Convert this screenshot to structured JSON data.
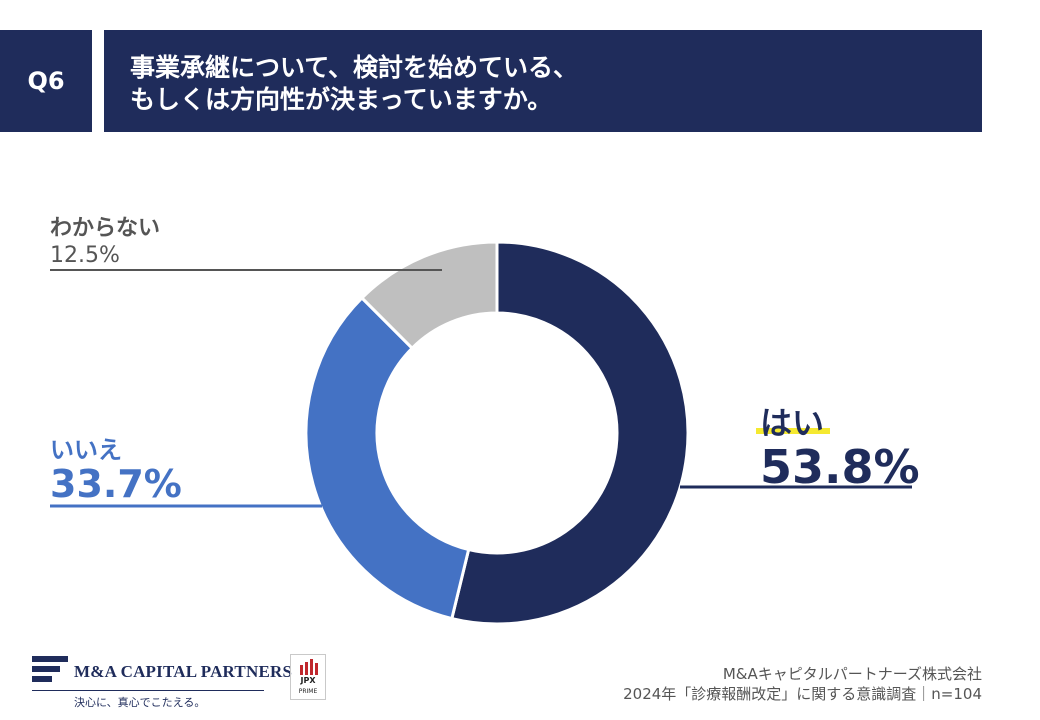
{
  "header": {
    "question_no": "Q6",
    "title_line1": "事業承継について、検討を始めている、",
    "title_line2": "もしくは方向性が決まっていますか。"
  },
  "chart_data": {
    "type": "pie",
    "style": "donut",
    "title": "事業承継について、検討を始めている、もしくは方向性が決まっていますか。",
    "labels": [
      "はい",
      "いいえ",
      "わからない"
    ],
    "values": [
      53.8,
      33.7,
      12.5
    ],
    "value_labels": [
      "53.8%",
      "33.7%",
      "12.5%"
    ],
    "unit": "%",
    "colors": [
      "#1f2c5b",
      "#4472c4",
      "#bfbfbf"
    ],
    "start": "12 o'clock, clockwise",
    "legend": "none (callout labels)"
  },
  "footer": {
    "company": "M&Aキャピタルパートナーズ株式会社",
    "survey": "2024年「診療報酬改定」に関する意識調査｜n=104",
    "logo_name": "M&A CAPITAL PARTNERS",
    "logo_tagline": "決心に、真心でこたえる。",
    "badge_line1": "JPX",
    "badge_line2": "PRIME"
  }
}
